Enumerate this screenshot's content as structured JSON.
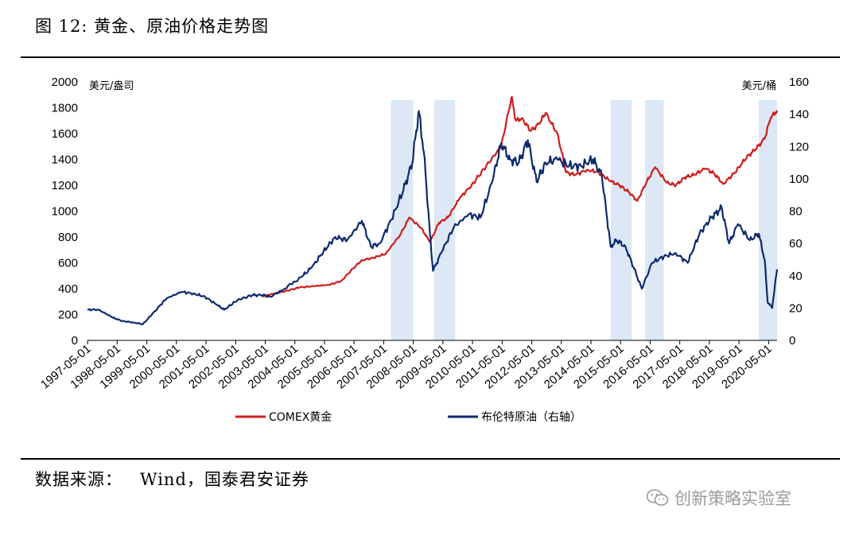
{
  "figure": {
    "title": "图 12: 黄金、原油价格走势图",
    "source_label": "数据来源：",
    "source_value": "Wind，国泰君安证券",
    "watermark": "创新策略实验室",
    "watermark_icon": "wechat-icon"
  },
  "chart_data": {
    "type": "line",
    "left_axis": {
      "unit": "美元/盎司",
      "ylim": [
        0,
        2000
      ],
      "ticks": [
        0,
        200,
        400,
        600,
        800,
        1000,
        1200,
        1400,
        1600,
        1800,
        2000
      ]
    },
    "right_axis": {
      "unit": "美元/桶",
      "ylim": [
        0,
        160
      ],
      "ticks": [
        0,
        20,
        40,
        60,
        80,
        100,
        120,
        140,
        160
      ]
    },
    "x_range": [
      1997.33,
      2020.62
    ],
    "x_ticks": [
      "1997-05-01",
      "1998-05-01",
      "1999-05-01",
      "2000-05-01",
      "2001-05-01",
      "2002-05-01",
      "2003-05-01",
      "2004-05-01",
      "2005-05-01",
      "2006-05-01",
      "2007-05-01",
      "2008-05-01",
      "2009-05-01",
      "2010-05-01",
      "2011-05-01",
      "2012-05-01",
      "2013-05-01",
      "2014-05-01",
      "2015-05-01",
      "2016-05-01",
      "2017-05-01",
      "2018-05-01",
      "2019-05-01",
      "2020-05-01"
    ],
    "shaded_periods": [
      {
        "start": 2007.58,
        "end": 2008.33
      },
      {
        "start": 2009.04,
        "end": 2009.75
      },
      {
        "start": 2015.0,
        "end": 2015.71
      },
      {
        "start": 2016.16,
        "end": 2016.79
      },
      {
        "start": 2020.0,
        "end": 2020.62
      }
    ],
    "shade_color": "#dce8f5",
    "series": [
      {
        "name": "COMEX黄金",
        "axis": "left",
        "color": "#d01c1c",
        "x": [
          2003.2,
          2003.6,
          2004.0,
          2004.5,
          2005.0,
          2005.5,
          2005.9,
          2006.4,
          2006.6,
          2007.0,
          2007.4,
          2007.9,
          2008.2,
          2008.6,
          2008.9,
          2009.2,
          2009.5,
          2009.9,
          2010.3,
          2010.8,
          2011.3,
          2011.65,
          2011.8,
          2012.0,
          2012.3,
          2012.6,
          2012.8,
          2013.2,
          2013.5,
          2013.8,
          2014.2,
          2014.6,
          2015.0,
          2015.3,
          2015.6,
          2015.9,
          2016.2,
          2016.5,
          2016.9,
          2017.2,
          2017.5,
          2017.8,
          2018.2,
          2018.5,
          2018.8,
          2019.2,
          2019.6,
          2019.9,
          2020.2,
          2020.4,
          2020.62
        ],
        "y": [
          340,
          360,
          380,
          410,
          420,
          430,
          460,
          580,
          620,
          640,
          670,
          820,
          950,
          870,
          760,
          910,
          950,
          1100,
          1200,
          1350,
          1500,
          1880,
          1700,
          1720,
          1620,
          1680,
          1760,
          1600,
          1300,
          1280,
          1320,
          1300,
          1230,
          1200,
          1150,
          1080,
          1220,
          1340,
          1220,
          1200,
          1260,
          1280,
          1330,
          1290,
          1210,
          1300,
          1420,
          1480,
          1560,
          1720,
          1780
        ]
      },
      {
        "name": "布伦特原油（右轴）",
        "axis": "right",
        "color": "#0d2a6e",
        "x": [
          1997.33,
          1997.7,
          1998.2,
          1998.5,
          1998.9,
          1999.2,
          1999.6,
          2000.0,
          2000.5,
          2000.9,
          2001.3,
          2001.7,
          2001.95,
          2002.4,
          2002.9,
          2003.2,
          2003.5,
          2004.0,
          2004.6,
          2004.9,
          2005.3,
          2005.7,
          2006.1,
          2006.6,
          2006.9,
          2007.2,
          2007.6,
          2008.0,
          2008.3,
          2008.52,
          2008.7,
          2008.9,
          2009.0,
          2009.3,
          2009.7,
          2010.2,
          2010.6,
          2011.0,
          2011.3,
          2011.6,
          2011.9,
          2012.2,
          2012.5,
          2012.8,
          2013.2,
          2013.6,
          2014.0,
          2014.4,
          2014.7,
          2015.0,
          2015.2,
          2015.5,
          2015.8,
          2016.05,
          2016.4,
          2016.8,
          2017.2,
          2017.6,
          2018.0,
          2018.4,
          2018.75,
          2019.0,
          2019.3,
          2019.7,
          2020.0,
          2020.2,
          2020.3,
          2020.45,
          2020.62
        ],
        "y": [
          19,
          19,
          14,
          12,
          11,
          10,
          18,
          26,
          30,
          29,
          27,
          22,
          19,
          25,
          28,
          28,
          27,
          32,
          40,
          45,
          55,
          64,
          62,
          74,
          58,
          60,
          75,
          93,
          110,
          142,
          115,
          65,
          43,
          55,
          70,
          78,
          76,
          98,
          122,
          112,
          110,
          124,
          98,
          110,
          112,
          108,
          108,
          112,
          102,
          58,
          62,
          58,
          44,
          32,
          48,
          52,
          54,
          48,
          66,
          76,
          82,
          60,
          72,
          62,
          66,
          50,
          24,
          20,
          44
        ]
      }
    ]
  }
}
